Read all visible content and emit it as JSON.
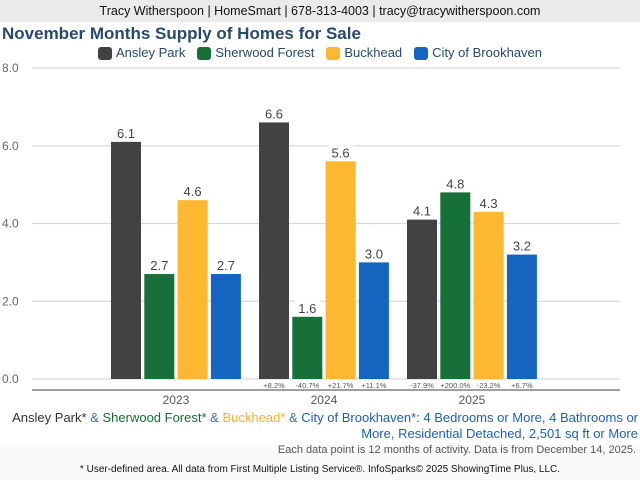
{
  "header": {
    "contact": "Tracy Witherspoon | HomeSmart | 678-313-4003 | tracy@tracywitherspoon.com"
  },
  "chart_data": {
    "type": "bar",
    "title": "November Months Supply of Homes for Sale",
    "categories": [
      "2023",
      "2024",
      "2025"
    ],
    "series": [
      {
        "name": "Ansley Park",
        "color": "#424242",
        "values": [
          6.1,
          6.6,
          4.1
        ],
        "labels": [
          "6.1",
          "6.6",
          "4.1"
        ],
        "changes": [
          "",
          "+8.2%",
          "-37.9%"
        ]
      },
      {
        "name": "Sherwood Forest",
        "color": "#176f3a",
        "values": [
          2.7,
          1.6,
          4.8
        ],
        "labels": [
          "2.7",
          "1.6",
          "4.8"
        ],
        "changes": [
          "",
          "-40.7%",
          "+200.0%"
        ]
      },
      {
        "name": "Buckhead",
        "color": "#fbb830",
        "values": [
          4.6,
          5.6,
          4.3
        ],
        "labels": [
          "4.6",
          "5.6",
          "4.3"
        ],
        "changes": [
          "",
          "+21.7%",
          "-23.2%"
        ]
      },
      {
        "name": "City of Brookhaven",
        "color": "#1565c0",
        "values": [
          2.7,
          3.0,
          3.2
        ],
        "labels": [
          "2.7",
          "3.0",
          "3.2"
        ],
        "changes": [
          "",
          "+11.1%",
          "+6.7%"
        ]
      }
    ],
    "ylim": [
      0,
      8
    ],
    "yticks": [
      "0.0",
      "2.0",
      "4.0",
      "6.0",
      "8.0"
    ],
    "ytick_values": [
      0,
      2,
      4,
      6,
      8
    ],
    "xlabel": "",
    "ylabel": "",
    "grid": true,
    "legend_position": "top-center"
  },
  "description": {
    "area1": "Ansley Park*",
    "amp": "&",
    "area2": "Sherwood Forest*",
    "area3": "Buckhead*",
    "area4": "City of Brookhaven*",
    "criteria_line1": ": 4 Bedrooms or More, 4 Bathrooms or",
    "criteria_line2": "More, Residential Detached, 2,501 sq ft or More"
  },
  "note": "Each data point is 12 months of activity. Data is from December 14, 2025.",
  "footer": "* User-defined area. All data from First Multiple Listing Service®. InfoSparks© 2025 ShowingTime Plus, LLC."
}
